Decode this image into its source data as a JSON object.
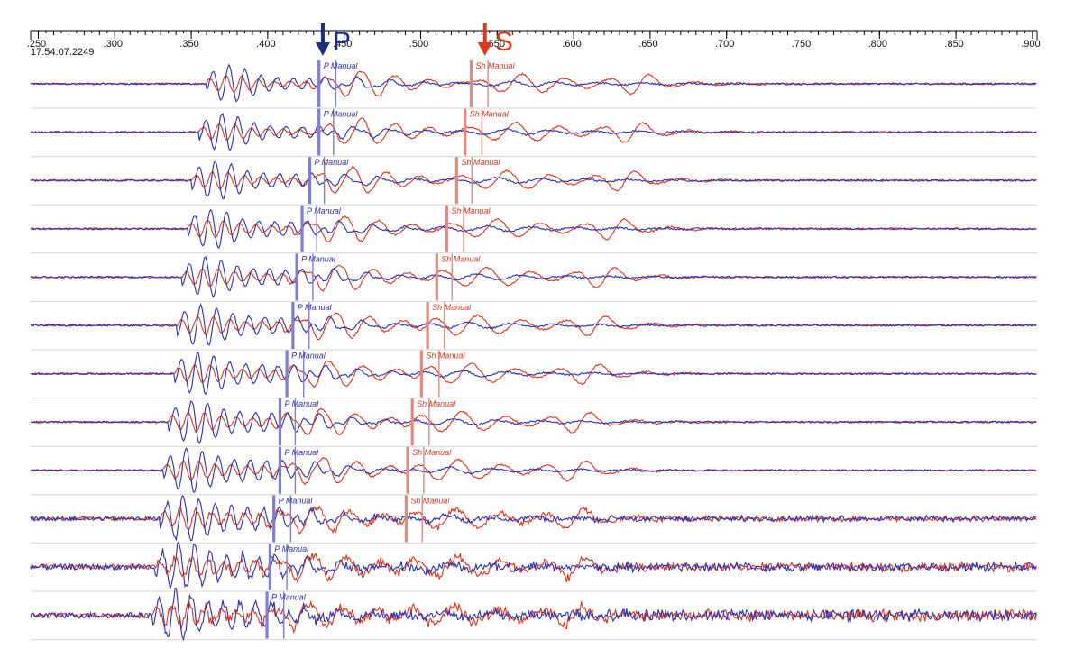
{
  "header": {
    "start_time": "17:54:07.2249"
  },
  "colors": {
    "p_pick": "#7f7fd0",
    "s_pick": "#e08a82",
    "trace_blue": "#2b2fb0",
    "trace_red": "#e0341c",
    "p_marker": "#1b2f7a",
    "s_marker": "#d83a1e",
    "axis": "#000000",
    "separator": "#d4d4d4"
  },
  "phase_markers": [
    {
      "label": "P",
      "time": 0.436
    },
    {
      "label": "S",
      "time": 0.542
    }
  ],
  "chart_data": {
    "type": "line",
    "title": "",
    "xlabel": "",
    "ylabel": "",
    "xlim": [
      0.245,
      0.903
    ],
    "x_ticks": [
      {
        "value": 0.25,
        "label": ".250"
      },
      {
        "value": 0.3,
        "label": ".300"
      },
      {
        "value": 0.35,
        "label": ".350"
      },
      {
        "value": 0.4,
        "label": ".400"
      },
      {
        "value": 0.45,
        "label": ".450"
      },
      {
        "value": 0.5,
        "label": ".500"
      },
      {
        "value": 0.55,
        "label": ".550"
      },
      {
        "value": 0.6,
        "label": ".600"
      },
      {
        "value": 0.65,
        "label": ".650"
      },
      {
        "value": 0.7,
        "label": ".700"
      },
      {
        "value": 0.75,
        "label": ".750"
      },
      {
        "value": 0.8,
        "label": ".800"
      },
      {
        "value": 0.85,
        "label": ".850"
      },
      {
        "value": 0.9,
        "label": ".900"
      }
    ],
    "grid": false,
    "legend": "none",
    "series_components": [
      "blue",
      "red"
    ],
    "traces": [
      {
        "onset": 0.3635,
        "p_pick": 0.4335,
        "p_pick2": 0.4445,
        "s_pick": 0.533,
        "s_pick2": 0.544,
        "p_label": "P Manual",
        "s_label": "Sh Manual"
      },
      {
        "onset": 0.359,
        "p_pick": 0.4335,
        "p_pick2": 0.443,
        "s_pick": 0.529,
        "s_pick2": 0.54,
        "p_label": "P Manual",
        "s_label": "Sh Manual"
      },
      {
        "onset": 0.3545,
        "p_pick": 0.4275,
        "p_pick2": 0.437,
        "s_pick": 0.5235,
        "s_pick2": 0.5335,
        "p_label": "P Manual",
        "s_label": "Sh Manual"
      },
      {
        "onset": 0.3515,
        "p_pick": 0.4225,
        "p_pick2": 0.432,
        "s_pick": 0.517,
        "s_pick2": 0.528,
        "p_label": "P Manual",
        "s_label": "Sh Manual"
      },
      {
        "onset": 0.348,
        "p_pick": 0.419,
        "p_pick2": 0.4295,
        "s_pick": 0.5105,
        "s_pick2": 0.5205,
        "p_label": "P Manual",
        "s_label": "Sh Manual"
      },
      {
        "onset": 0.345,
        "p_pick": 0.4165,
        "p_pick2": 0.427,
        "s_pick": 0.5045,
        "s_pick2": 0.5155,
        "p_label": "P Manual",
        "s_label": "Sh Manual"
      },
      {
        "onset": 0.343,
        "p_pick": 0.4125,
        "p_pick2": 0.4235,
        "s_pick": 0.5005,
        "s_pick2": 0.512,
        "p_label": "P Manual",
        "s_label": "Sh Manual"
      },
      {
        "onset": 0.339,
        "p_pick": 0.408,
        "p_pick2": 0.418,
        "s_pick": 0.4945,
        "s_pick2": 0.5055,
        "p_label": "P Manual",
        "s_label": "Sh Manual"
      },
      {
        "onset": 0.3355,
        "p_pick": 0.408,
        "p_pick2": 0.418,
        "s_pick": 0.4915,
        "s_pick2": 0.502,
        "p_label": "P Manual",
        "s_label": "Sh Manual"
      },
      {
        "onset": 0.3335,
        "p_pick": 0.404,
        "p_pick2": 0.415,
        "s_pick": 0.4905,
        "s_pick2": 0.501,
        "p_label": "P Manual",
        "s_label": "Sh Manual"
      },
      {
        "onset": 0.3305,
        "p_pick": 0.4015,
        "p_pick2": 0.4125,
        "s_pick": null,
        "s_pick2": null,
        "p_label": "P Manual",
        "s_label": ""
      },
      {
        "onset": 0.3285,
        "p_pick": 0.3995,
        "p_pick2": 0.4105,
        "s_pick": null,
        "s_pick2": null,
        "p_label": "P Manual",
        "s_label": ""
      }
    ]
  }
}
